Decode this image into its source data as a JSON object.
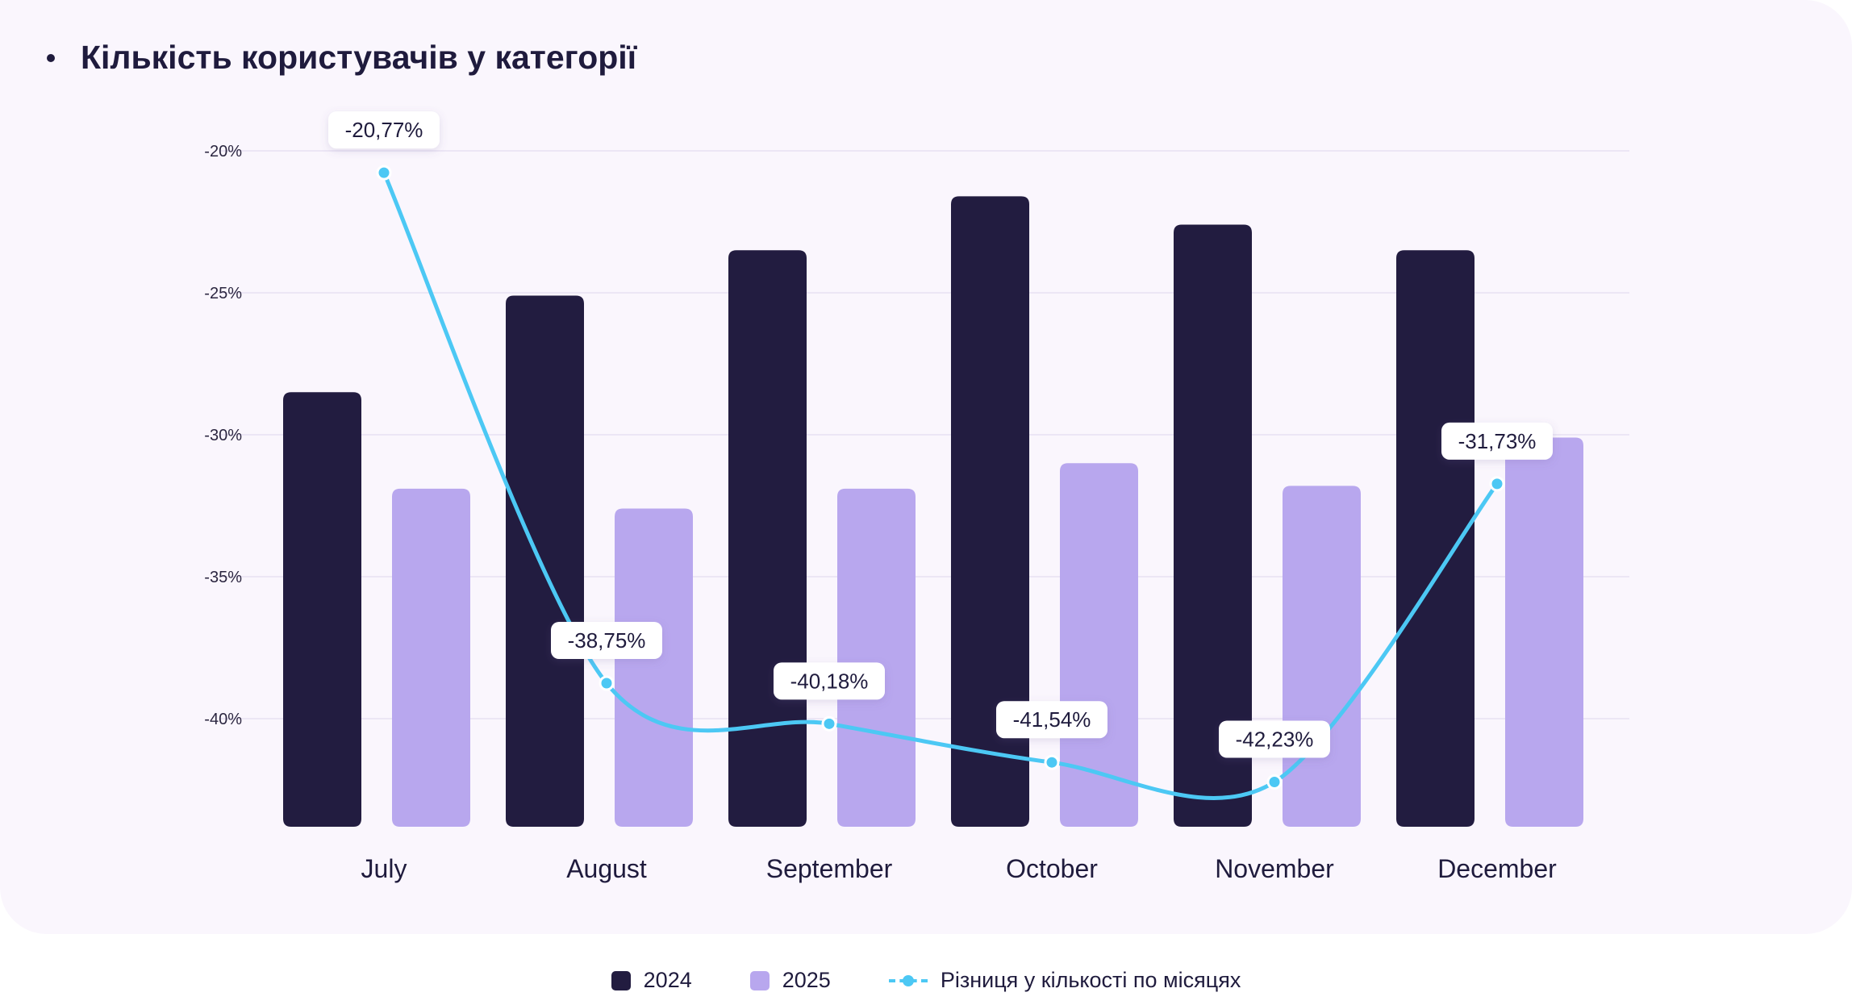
{
  "title": "Кількість користувачів у категорії",
  "legend": {
    "series_2024": "2024",
    "series_2025": "2025",
    "series_diff": "Різниця у кількості по місяцях"
  },
  "colors": {
    "bar_2024": "#221c40",
    "bar_2025": "#b8a7ee",
    "line": "#4cc8f4",
    "grid": "#ece6f5"
  },
  "chart_data": {
    "type": "bar",
    "categories": [
      "July",
      "August",
      "September",
      "October",
      "November",
      "December"
    ],
    "yaxis_ticks": [
      "-20%",
      "-25%",
      "-30%",
      "-35%",
      "-40%"
    ],
    "ylim": [
      -43.8,
      -20
    ],
    "grid": true,
    "legend_position": "bottom-center",
    "series": [
      {
        "name": "2024",
        "type": "bar",
        "values": [
          -28.5,
          -25.1,
          -23.5,
          -21.6,
          -22.6,
          -23.5
        ]
      },
      {
        "name": "2025",
        "type": "bar",
        "values": [
          -31.9,
          -32.6,
          -31.9,
          -31.0,
          -31.8,
          -30.1
        ]
      },
      {
        "name": "Різниця у кількості по місяцях",
        "type": "line",
        "values": [
          -20.77,
          -38.75,
          -40.18,
          -41.54,
          -42.23,
          -31.73
        ],
        "labels": [
          "-20,77%",
          "-38,75%",
          "-40,18%",
          "-41,54%",
          "-42,23%",
          "-31,73%"
        ]
      }
    ]
  }
}
